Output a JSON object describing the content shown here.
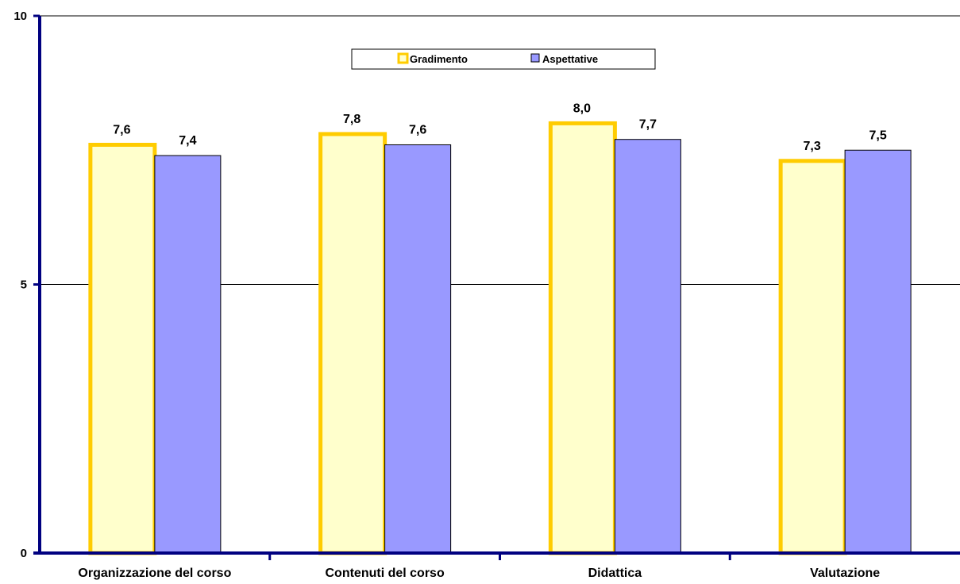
{
  "chart_data": {
    "type": "bar",
    "categories": [
      "Organizzazione del corso",
      "Contenuti del corso",
      "Didattica",
      "Valutazione"
    ],
    "series": [
      {
        "name": "Gradimento",
        "values": [
          7.6,
          7.8,
          8.0,
          7.3
        ],
        "labels": [
          "7,6",
          "7,8",
          "8,0",
          "7,3"
        ],
        "fill": "#ffffcc",
        "stroke": "#ffcc00"
      },
      {
        "name": "Aspettative",
        "values": [
          7.4,
          7.6,
          7.7,
          7.5
        ],
        "labels": [
          "7,4",
          "7,6",
          "7,7",
          "7,5"
        ],
        "fill": "#9999ff",
        "stroke": "#000000"
      }
    ],
    "ylim": [
      0,
      10
    ],
    "yticks": [
      0,
      5,
      10
    ],
    "ytick_labels": [
      "0",
      "5",
      "10"
    ],
    "grid": true,
    "legend_position": "top-center",
    "axis_color": "#000080"
  }
}
